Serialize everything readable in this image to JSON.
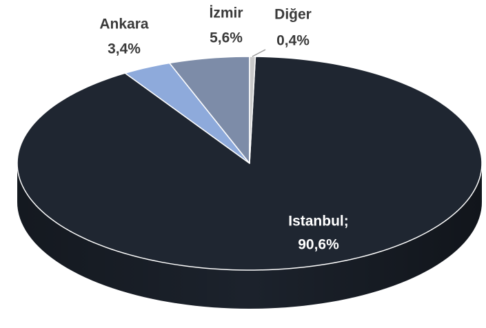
{
  "chart_data": {
    "type": "pie",
    "categories": [
      "Istanbul;",
      "Ankara",
      "İzmir",
      "Diğer"
    ],
    "values": [
      90.6,
      3.4,
      5.6,
      0.4
    ],
    "value_labels": [
      "90,6%",
      "3,4%",
      "5,6%",
      "0,4%"
    ],
    "colors": [
      "#1f2631",
      "#8eaadb",
      "#7d8ca8",
      "#c9c9c9"
    ]
  }
}
